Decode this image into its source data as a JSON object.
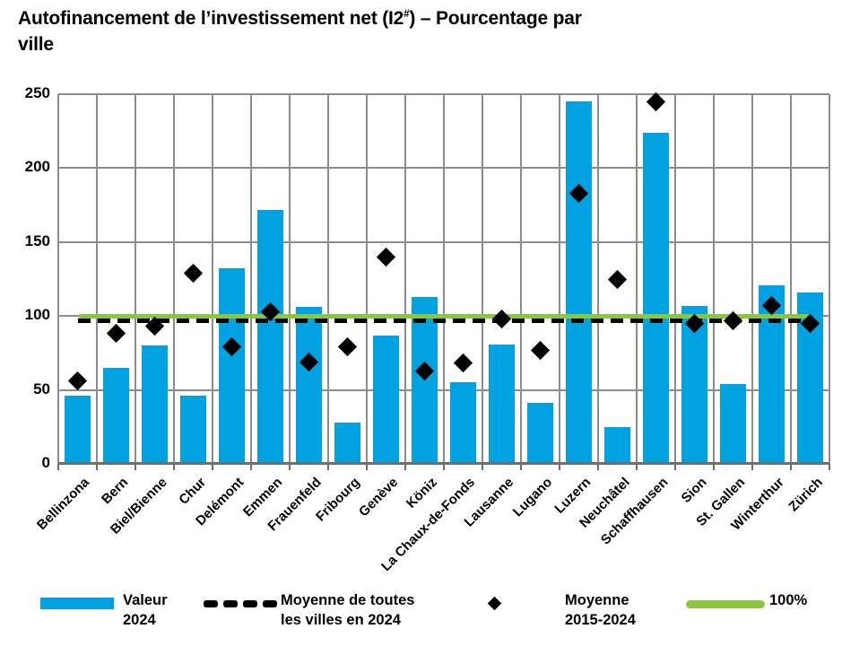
{
  "title": {
    "line1_pre": "Autofinancement de l’investissement net (I2",
    "line1_sup": "#",
    "line1_post": ") – Pourcentage par",
    "line2": "ville"
  },
  "colors": {
    "bar": "#00a2e1",
    "green": "#8cc63f",
    "black": "#000000",
    "grid": "#8c8c8c",
    "axis": "#6e6e6e",
    "text": "#000000"
  },
  "chart_data": {
    "type": "bar",
    "title": "Autofinancement de l’investissement net (I2#) – Pourcentage par ville",
    "xlabel": "",
    "ylabel": "",
    "ylim": [
      0,
      250
    ],
    "yticks": [
      0,
      50,
      100,
      150,
      200,
      250
    ],
    "grid": true,
    "legend_position": "bottom",
    "categories": [
      "Bellinzona",
      "Bern",
      "Biel/Bienne",
      "Chur",
      "Delémont",
      "Emmen",
      "Frauenfeld",
      "Fribourg",
      "Genève",
      "Köniz",
      "La Chaux-de-Fonds",
      "Lausanne",
      "Lugano",
      "Luzern",
      "Neuchâtel",
      "Schaffhausen",
      "Sion",
      "St. Gallen",
      "Winterthur",
      "Zürich"
    ],
    "series": [
      {
        "name": "Valeur 2024",
        "type": "bar",
        "color": "#00a2e1",
        "values": [
          46,
          65,
          80,
          46,
          132,
          172,
          106,
          28,
          87,
          113,
          55,
          81,
          41,
          245,
          25,
          224,
          107,
          54,
          121,
          116
        ]
      },
      {
        "name": "Moyenne 2015-2024",
        "type": "diamond-markers",
        "color": "#000000",
        "values": [
          56,
          88,
          93,
          129,
          79,
          103,
          69,
          79,
          140,
          63,
          68,
          98,
          77,
          183,
          125,
          245,
          95,
          97,
          107,
          95
        ]
      },
      {
        "name": "Moyenne de toutes les villes en 2024",
        "type": "dashed-horizontal-line",
        "color": "#000000",
        "value": 97
      },
      {
        "name": "100%",
        "type": "horizontal-line",
        "color": "#8cc63f",
        "value": 100
      }
    ]
  },
  "legend": {
    "items": [
      {
        "swatch": "bar-swatch",
        "line1": "Valeur",
        "line2": "2024"
      },
      {
        "swatch": "dashed-line-swatch",
        "line1": "Moyenne de toutes",
        "line2": "les villes en 2024"
      },
      {
        "swatch": "diamond-swatch",
        "line1": "Moyenne",
        "line2": "2015-2024"
      },
      {
        "swatch": "green-line-swatch",
        "line1": "100%",
        "line2": ""
      }
    ]
  }
}
